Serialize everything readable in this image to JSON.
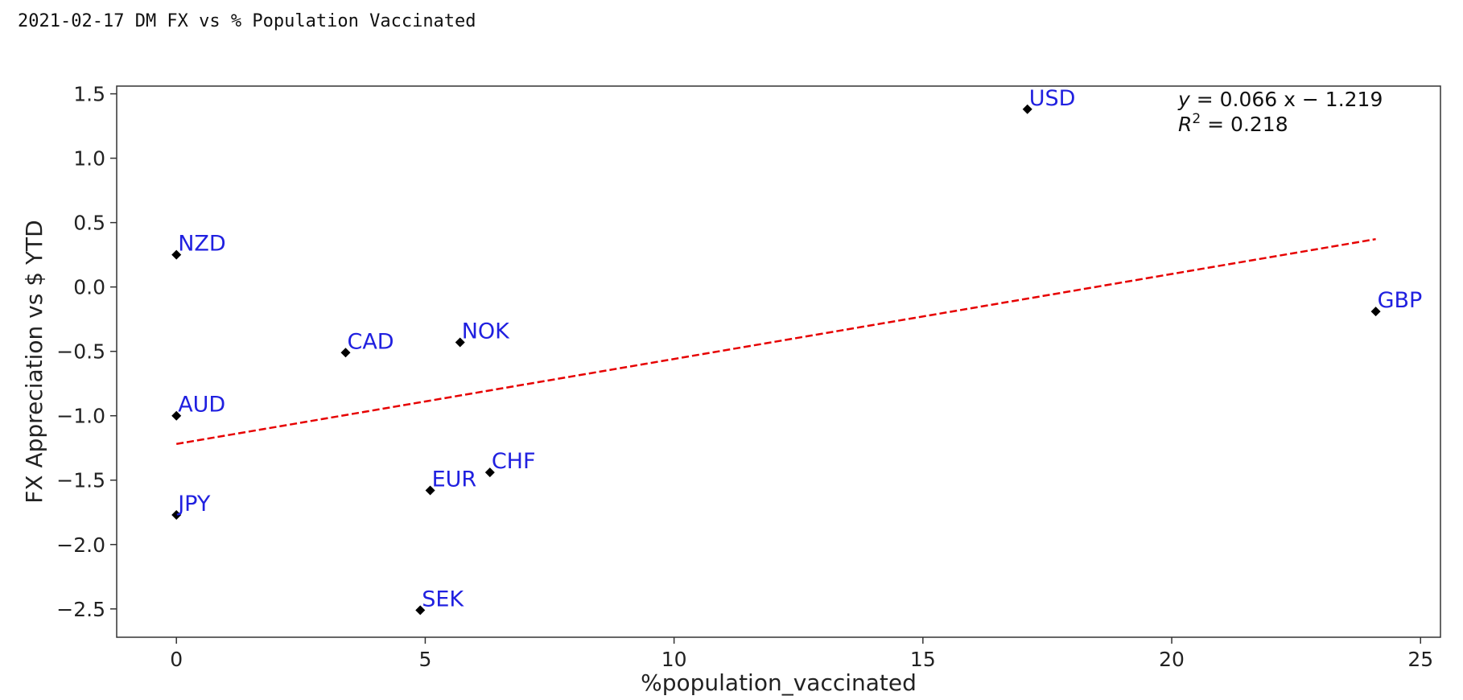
{
  "page": {
    "title": "2021-02-17 DM FX vs % Population Vaccinated"
  },
  "chart_data": {
    "type": "scatter",
    "xlabel": "%population_vaccinated",
    "ylabel": "FX Appreciation vs $ YTD",
    "xlim": [
      -1.2,
      25.4
    ],
    "ylim": [
      -2.72,
      1.56
    ],
    "xticks": [
      0,
      5,
      10,
      15,
      20,
      25
    ],
    "xtick_labels": [
      "0",
      "5",
      "10",
      "15",
      "20",
      "25"
    ],
    "yticks": [
      1.5,
      1.0,
      0.5,
      0.0,
      -0.5,
      -1.0,
      -1.5,
      -2.0,
      -2.5
    ],
    "ytick_labels": [
      "1.5",
      "1.0",
      "0.5",
      "0.0",
      "−0.5",
      "−1.0",
      "−1.5",
      "−2.0",
      "−2.5"
    ],
    "grid": false,
    "points": [
      {
        "label": "USD",
        "x": 17.1,
        "y": 1.38
      },
      {
        "label": "NZD",
        "x": 0.0,
        "y": 0.25
      },
      {
        "label": "GBP",
        "x": 24.1,
        "y": -0.19
      },
      {
        "label": "NOK",
        "x": 5.7,
        "y": -0.43
      },
      {
        "label": "CAD",
        "x": 3.4,
        "y": -0.51
      },
      {
        "label": "AUD",
        "x": 0.0,
        "y": -1.0
      },
      {
        "label": "CHF",
        "x": 6.3,
        "y": -1.44
      },
      {
        "label": "EUR",
        "x": 5.1,
        "y": -1.58
      },
      {
        "label": "JPY",
        "x": 0.0,
        "y": -1.77
      },
      {
        "label": "SEK",
        "x": 4.9,
        "y": -2.51
      }
    ],
    "fit_line": {
      "slope": 0.066,
      "intercept": -1.219,
      "x_range": [
        0,
        24.1
      ],
      "style": "dashed"
    },
    "annotation": {
      "equation_lhs": "y",
      "equation_rhs": " = 0.066 x − 1.219",
      "r2_lhs": "R",
      "r2_sup": "2",
      "r2_rhs": " = 0.218"
    },
    "colors": {
      "marker": "#000000",
      "label": "#2020e0",
      "fit_line": "#e60000",
      "axes": "#333333"
    }
  }
}
